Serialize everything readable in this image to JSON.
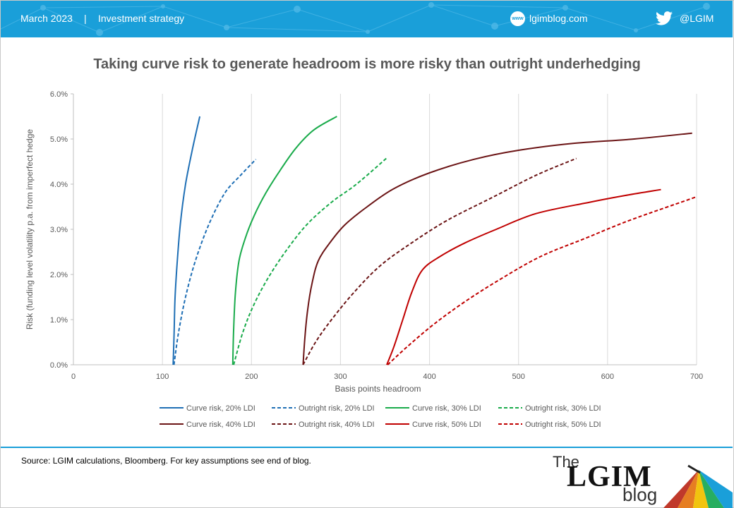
{
  "header": {
    "date": "March 2023",
    "separator": "|",
    "category": "Investment strategy",
    "site_badge": "www",
    "site": "lgimblog.com",
    "social_handle": "@LGIM",
    "background_color": "#1a9fd9"
  },
  "footer": {
    "source": "Source: LGIM calculations, Bloomberg.  For key assumptions see end of blog.",
    "logo_the": "The",
    "logo_name": "LGIM",
    "logo_blog": "blog"
  },
  "chart_data": {
    "type": "line",
    "title": "Taking curve risk to generate headroom is more risky than outright underhedging",
    "xlabel": "Basis points  headroom",
    "ylabel": "Risk (funding  level volatility  p.a. from imperfect hedge",
    "xlim": [
      0,
      700
    ],
    "ylim": [
      0,
      0.06
    ],
    "x_ticks": [
      "0",
      "100",
      "200",
      "300",
      "400",
      "500",
      "600",
      "700"
    ],
    "y_ticks": [
      "0.0%",
      "1.0%",
      "2.0%",
      "3.0%",
      "4.0%",
      "5.0%",
      "6.0%"
    ],
    "grid": "vertical",
    "legend_position": "bottom",
    "series": [
      {
        "name": "Curve risk, 20% LDI",
        "color": "#1f6fb5",
        "dashed": false,
        "points": [
          [
            112,
            0.0
          ],
          [
            113,
            0.006
          ],
          [
            114,
            0.014
          ],
          [
            116,
            0.021
          ],
          [
            120,
            0.031
          ],
          [
            126,
            0.04
          ],
          [
            134,
            0.048
          ],
          [
            142,
            0.055
          ]
        ]
      },
      {
        "name": "Outright risk, 20% LDI",
        "color": "#1f6fb5",
        "dashed": true,
        "points": [
          [
            113,
            0.0
          ],
          [
            118,
            0.007
          ],
          [
            126,
            0.015
          ],
          [
            137,
            0.023
          ],
          [
            152,
            0.031
          ],
          [
            170,
            0.038
          ],
          [
            188,
            0.042
          ],
          [
            205,
            0.0455
          ]
        ]
      },
      {
        "name": "Curve risk, 30% LDI",
        "color": "#1aab4b",
        "dashed": false,
        "points": [
          [
            179,
            0.0
          ],
          [
            180,
            0.008
          ],
          [
            182,
            0.016
          ],
          [
            186,
            0.023
          ],
          [
            193,
            0.028
          ],
          [
            203,
            0.033
          ],
          [
            216,
            0.038
          ],
          [
            232,
            0.043
          ],
          [
            250,
            0.048
          ],
          [
            270,
            0.052
          ],
          [
            296,
            0.055
          ]
        ]
      },
      {
        "name": "Outright risk, 30% LDI",
        "color": "#1aab4b",
        "dashed": true,
        "points": [
          [
            180,
            0.0
          ],
          [
            190,
            0.007
          ],
          [
            202,
            0.013
          ],
          [
            218,
            0.019
          ],
          [
            238,
            0.025
          ],
          [
            262,
            0.031
          ],
          [
            290,
            0.036
          ],
          [
            318,
            0.04
          ],
          [
            352,
            0.0458
          ]
        ]
      },
      {
        "name": "Curve risk, 40% LDI",
        "color": "#6b1415",
        "dashed": false,
        "points": [
          [
            258,
            0.0
          ],
          [
            260,
            0.006
          ],
          [
            263,
            0.012
          ],
          [
            268,
            0.018
          ],
          [
            275,
            0.023
          ],
          [
            288,
            0.027
          ],
          [
            305,
            0.031
          ],
          [
            330,
            0.035
          ],
          [
            360,
            0.039
          ],
          [
            400,
            0.0425
          ],
          [
            450,
            0.0455
          ],
          [
            500,
            0.0475
          ],
          [
            560,
            0.049
          ],
          [
            630,
            0.05
          ],
          [
            695,
            0.0513
          ]
        ]
      },
      {
        "name": "Outright risk, 40% LDI",
        "color": "#6b1415",
        "dashed": true,
        "points": [
          [
            258,
            0.0
          ],
          [
            272,
            0.005
          ],
          [
            290,
            0.01
          ],
          [
            315,
            0.016
          ],
          [
            345,
            0.022
          ],
          [
            380,
            0.027
          ],
          [
            420,
            0.032
          ],
          [
            470,
            0.037
          ],
          [
            520,
            0.042
          ],
          [
            565,
            0.0457
          ]
        ]
      },
      {
        "name": "Curve risk, 50% LDI",
        "color": "#c00000",
        "dashed": false,
        "points": [
          [
            352,
            0.0
          ],
          [
            360,
            0.004
          ],
          [
            370,
            0.01
          ],
          [
            380,
            0.016
          ],
          [
            392,
            0.021
          ],
          [
            412,
            0.024
          ],
          [
            440,
            0.027
          ],
          [
            475,
            0.03
          ],
          [
            520,
            0.0335
          ],
          [
            580,
            0.036
          ],
          [
            620,
            0.0375
          ],
          [
            660,
            0.0388
          ]
        ]
      },
      {
        "name": "Outright risk, 50% LDI",
        "color": "#c00000",
        "dashed": true,
        "points": [
          [
            353,
            0.0
          ],
          [
            375,
            0.004
          ],
          [
            405,
            0.009
          ],
          [
            440,
            0.014
          ],
          [
            480,
            0.019
          ],
          [
            525,
            0.024
          ],
          [
            575,
            0.028
          ],
          [
            625,
            0.032
          ],
          [
            700,
            0.0372
          ]
        ]
      }
    ]
  }
}
